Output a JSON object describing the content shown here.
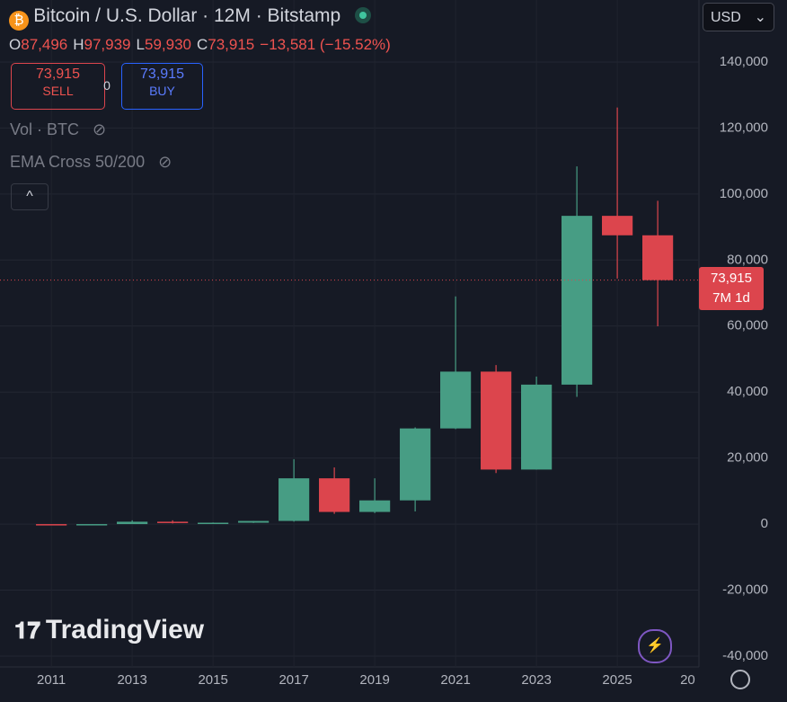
{
  "header": {
    "title": "Bitcoin / U.S. Dollar · 12M · Bitstamp",
    "ohlc": [
      {
        "key": "O",
        "value": "87,496"
      },
      {
        "key": "H",
        "value": "97,939"
      },
      {
        "key": "L",
        "value": "59,930"
      },
      {
        "key": "C",
        "value": "73,915"
      }
    ],
    "change": "−13,581 (−15.52%)",
    "sell": {
      "price": "73,915",
      "label": "SELL"
    },
    "spread": "0",
    "buy": {
      "price": "73,915",
      "label": "BUY"
    },
    "indicators": [
      "Vol · BTC",
      "EMA Cross 50/200"
    ],
    "currency": "USD",
    "logo": "TradingView"
  },
  "price_label": {
    "value": "73,915",
    "countdown": "7M 1d"
  },
  "chart_data": {
    "type": "candlestick",
    "x": [
      2011,
      2012,
      2013,
      2014,
      2015,
      2016,
      2017,
      2018,
      2019,
      2020,
      2021,
      2022,
      2023,
      2024,
      2025,
      2026
    ],
    "open": [
      5,
      4.7,
      13.5,
      732,
      320,
      430,
      963,
      13880,
      3693,
      7193,
      28990,
      46200,
      16530,
      42258,
      93390,
      87496
    ],
    "high": [
      32,
      16,
      1163,
      1165,
      495,
      980,
      19666,
      17178,
      13880,
      29300,
      69000,
      48190,
      44700,
      108353,
      126200,
      97939
    ],
    "low": [
      2,
      4,
      13,
      200,
      152,
      350,
      752,
      3122,
      3349,
      3850,
      28800,
      15476,
      16496,
      38546,
      74400,
      59930
    ],
    "close": [
      4.7,
      13.5,
      732,
      320,
      430,
      963,
      13880,
      3693,
      7193,
      28990,
      46200,
      16530,
      42258,
      93390,
      87496,
      73915
    ],
    "up_color": "#479d84",
    "down_color": "#dc454d",
    "xlim": [
      2009.73,
      2027.02
    ],
    "xticks": [
      2011,
      2013,
      2015,
      2017,
      2019,
      2021,
      2023,
      2025,
      {
        "value": 2027,
        "label": "20"
      }
    ],
    "ylim": [
      -43265,
      158776
    ],
    "yticks": [
      {
        "value": -40000,
        "label": "-40,000"
      },
      {
        "value": -20000,
        "label": "-20,000"
      },
      0,
      {
        "value": 20000,
        "label": "20,000"
      },
      {
        "value": 40000,
        "label": "40,000"
      },
      {
        "value": 60000,
        "label": "60,000"
      },
      {
        "value": 80000,
        "label": "80,000"
      },
      {
        "value": 100000,
        "label": "100,000"
      },
      {
        "value": 120000,
        "label": "120,000"
      },
      {
        "value": 140000,
        "label": "140,000"
      }
    ],
    "grid": true
  }
}
